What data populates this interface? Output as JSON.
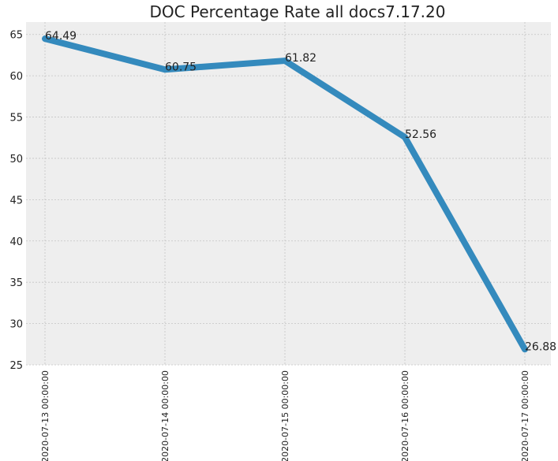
{
  "chart_data": {
    "type": "line",
    "title": "DOC Percentage Rate all docs7.17.20",
    "xlabel": "",
    "ylabel": "",
    "categories": [
      "2020-07-13 00:00:00",
      "2020-07-14 00:00:00",
      "2020-07-15 00:00:00",
      "2020-07-16 00:00:00",
      "2020-07-17 00:00:00"
    ],
    "series": [
      {
        "values": [
          64.49,
          60.75,
          61.82,
          52.56,
          26.88
        ],
        "color": "#348abd"
      }
    ],
    "data_labels": [
      "64.49",
      "60.75",
      "61.82",
      "52.56",
      "26.88"
    ],
    "ylim": [
      25,
      66.5
    ],
    "yticks": [
      "25",
      "30",
      "35",
      "40",
      "45",
      "50",
      "55",
      "60",
      "65"
    ],
    "grid": true,
    "background": "#eeeeee"
  }
}
